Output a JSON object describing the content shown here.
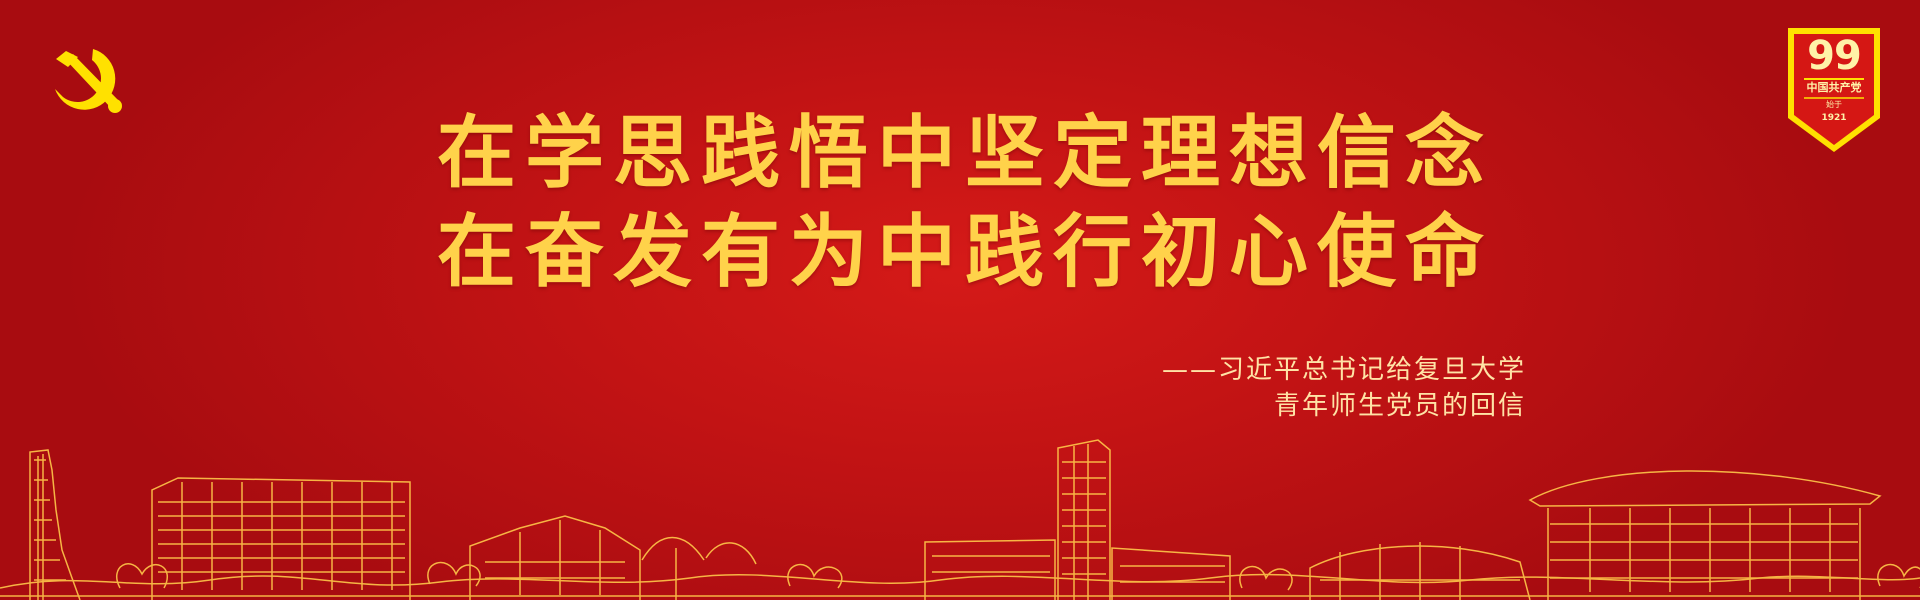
{
  "colors": {
    "background_red": "#c21314",
    "gold": "#ffd24a",
    "cream": "#ffe3a6",
    "badge_gold": "#ffe100"
  },
  "icons": {
    "left_emblem": "hammer-sickle-icon",
    "right_badge": "anniversary-shield-icon",
    "skyline": "campus-skyline-icon"
  },
  "headline": {
    "line1": "在学思践悟中坚定理想信念",
    "line2": "在奋发有为中践行初心使命"
  },
  "attribution": {
    "line1": "——习近平总书记给复旦大学",
    "line2": "青年师生党员的回信"
  },
  "badge": {
    "number": "99",
    "party": "中国共产党",
    "since": "始于",
    "year": "1921"
  }
}
